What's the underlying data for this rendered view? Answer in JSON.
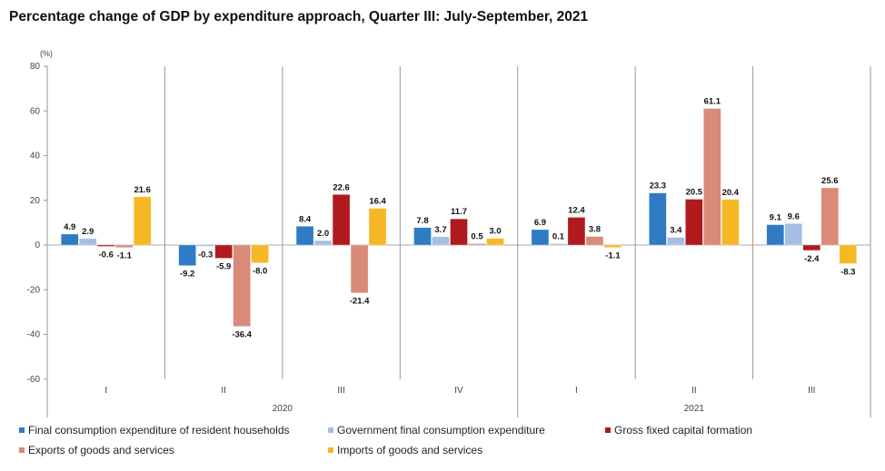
{
  "chart_data": {
    "type": "bar",
    "title": "Percentage change of GDP by expenditure approach, Quarter III: July-September, 2021",
    "xlabel": "",
    "ylabel": "(%)",
    "ylim": [
      -70,
      80
    ],
    "yticks": [
      80,
      60,
      40,
      20,
      0,
      -20,
      -40,
      -60
    ],
    "categories": [
      "I",
      "II",
      "III",
      "IV",
      "I",
      "II",
      "III"
    ],
    "year_groups": [
      {
        "label": "2020",
        "span": 4
      },
      {
        "label": "2021",
        "span": 3
      }
    ],
    "grid": false,
    "legend_position": "bottom",
    "series": [
      {
        "name": "Final consumption expenditure of resident households",
        "color": "#2F7CC4",
        "values": [
          4.9,
          -9.2,
          8.4,
          7.8,
          6.9,
          23.3,
          9.1
        ],
        "labels": [
          "4.9",
          "-9.2",
          "8.4",
          "7.8",
          "6.9",
          "23.3",
          "9.1"
        ]
      },
      {
        "name": "Government final consumption expenditure",
        "color": "#A4BEE4",
        "values": [
          2.9,
          -0.3,
          2.0,
          3.7,
          0.1,
          3.4,
          9.6
        ],
        "labels": [
          "2.9",
          "-0.3",
          "2.0",
          "3.7",
          "0.1",
          "3.4",
          "9.6"
        ]
      },
      {
        "name": "Gross fixed capital formation",
        "color": "#B01A1E",
        "values": [
          -0.6,
          -5.9,
          22.6,
          11.7,
          12.4,
          20.5,
          -2.4
        ],
        "labels": [
          "-0.6",
          "-5.9",
          "22.6",
          "11.7",
          "12.4",
          "20.5",
          "-2.4"
        ]
      },
      {
        "name": "Exports of goods and services",
        "color": "#D98A78",
        "values": [
          -1.1,
          -36.4,
          -21.4,
          0.5,
          3.8,
          61.1,
          25.6
        ],
        "labels": [
          "-1.1",
          "-36.4",
          "-21.4",
          "0.5",
          "3.8",
          "61.1",
          "25.6"
        ]
      },
      {
        "name": "Imports of goods and services",
        "color": "#F7B825",
        "values": [
          21.6,
          -8.0,
          16.4,
          3.0,
          -1.1,
          20.4,
          -8.3
        ],
        "labels": [
          "21.6",
          "-8.0",
          "16.4",
          "3.0",
          "-1.1",
          "20.4",
          "-8.3"
        ]
      }
    ]
  }
}
